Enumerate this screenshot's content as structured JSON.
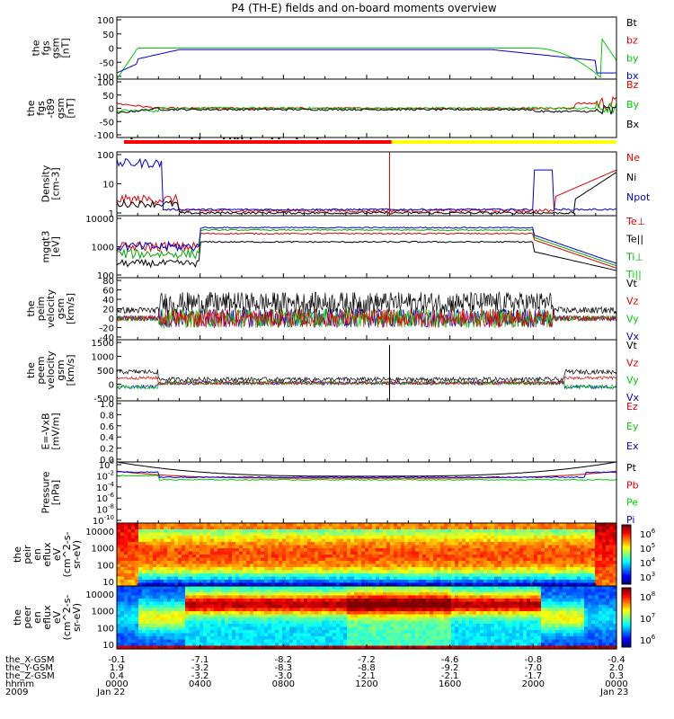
{
  "chart_data": {
    "type": "line",
    "title": "P4 (TH-E) fields and on-board moments overview",
    "panels": [
      {
        "id": "fgs",
        "ylabel": [
          "the",
          "fgs",
          "gsm",
          "[nT]"
        ],
        "yticks": [
          "100",
          "50",
          "0",
          "-50",
          "-100"
        ],
        "ylim": [
          -100,
          100
        ],
        "scale": "linear",
        "legend": [
          {
            "name": "Bt",
            "color": "#000000"
          },
          {
            "name": "bz",
            "color": "#dd0000"
          },
          {
            "name": "by",
            "color": "#00cc00"
          },
          {
            "name": "bx",
            "color": "#0000cc"
          }
        ]
      },
      {
        "id": "fgs_dt89",
        "ylabel": [
          "the",
          "fgs",
          "-t89",
          "gsm",
          "[nT]"
        ],
        "yticks": [
          "100",
          "50",
          "0",
          "-50",
          "-100"
        ],
        "ylim": [
          -120,
          120
        ],
        "scale": "linear",
        "legend": [
          {
            "name": "Bz",
            "color": "#dd0000"
          },
          {
            "name": "By",
            "color": "#00cc00"
          },
          {
            "name": "Bx",
            "color": "#000000"
          }
        ]
      },
      {
        "id": "density",
        "ylabel": [
          "Density",
          "[cm-3]"
        ],
        "yticks": [
          "100",
          "10",
          "1"
        ],
        "ylim": [
          0.3,
          200
        ],
        "scale": "log",
        "legend": [
          {
            "name": "Ne",
            "color": "#dd0000"
          },
          {
            "name": "Ni",
            "color": "#000000"
          },
          {
            "name": "Npot",
            "color": "#0000cc"
          }
        ]
      },
      {
        "id": "temperature",
        "ylabel": [
          "mgqt3",
          "[eV]"
        ],
        "yticks": [
          "10000",
          "1000",
          "100"
        ],
        "ylim": [
          50,
          20000
        ],
        "scale": "log",
        "legend": [
          {
            "name": "Te⊥",
            "color": "#dd0000"
          },
          {
            "name": "Te||",
            "color": "#000000"
          },
          {
            "name": "Ti⊥",
            "color": "#00aa00"
          },
          {
            "name": "Ti||",
            "color": "#00cc00"
          }
        ]
      },
      {
        "id": "peim_velocity",
        "ylabel": [
          "the",
          "peim",
          "velocity",
          "gsm",
          "[km/s]"
        ],
        "yticks": [
          "80",
          "60",
          "40",
          "20",
          "0",
          "-20",
          "-40"
        ],
        "ylim": [
          -45,
          85
        ],
        "scale": "linear",
        "legend": [
          {
            "name": "Vt",
            "color": "#000000"
          },
          {
            "name": "Vz",
            "color": "#dd0000"
          },
          {
            "name": "Vy",
            "color": "#00cc00"
          },
          {
            "name": "Vx",
            "color": "#0000cc"
          }
        ]
      },
      {
        "id": "peem_velocity",
        "ylabel": [
          "the",
          "peem",
          "velocity",
          "gsm",
          "[km/s]"
        ],
        "yticks": [
          "1500",
          "1000",
          "500",
          "0",
          "-500"
        ],
        "ylim": [
          -700,
          1700
        ],
        "scale": "linear",
        "legend": [
          {
            "name": "Vt",
            "color": "#000000"
          },
          {
            "name": "Vz",
            "color": "#dd0000"
          },
          {
            "name": "Vy",
            "color": "#00cc00"
          },
          {
            "name": "Vx",
            "color": "#0000cc"
          }
        ]
      },
      {
        "id": "efield",
        "ylabel": [
          "E=-VxB",
          "[mV/m]"
        ],
        "yticks": [
          "1.0",
          "0.8",
          "0.6",
          "0.4",
          "0.2",
          "0.0"
        ],
        "ylim": [
          0,
          1
        ],
        "scale": "linear",
        "legend": [
          {
            "name": "Ez",
            "color": "#dd0000"
          },
          {
            "name": "Ey",
            "color": "#00cc00"
          },
          {
            "name": "Ex",
            "color": "#0000cc"
          }
        ]
      },
      {
        "id": "pressure",
        "ylabel": [
          "Pressure",
          "[nPa]"
        ],
        "yticks": [
          "10^0",
          "10^-2",
          "10^-4",
          "10^-6",
          "10^-8",
          "10^-10"
        ],
        "ylim": [
          -11,
          1
        ],
        "scale": "log",
        "legend": [
          {
            "name": "Pt",
            "color": "#000000"
          },
          {
            "name": "Pb",
            "color": "#dd0000"
          },
          {
            "name": "Pe",
            "color": "#00cc00"
          },
          {
            "name": "Pi",
            "color": "#0000cc"
          }
        ]
      },
      {
        "id": "peir_spectrogram",
        "type": "heatmap",
        "ylabel": [
          "the",
          "peir",
          "en",
          "eflux",
          "eV",
          "(cm^2-s-",
          "sr-eV)"
        ],
        "yticks": [
          "10000",
          "1000",
          "100",
          "10"
        ],
        "colorbar": [
          "10^6",
          "10^5",
          "10^4",
          "10^3"
        ]
      },
      {
        "id": "peer_spectrogram",
        "type": "heatmap",
        "ylabel": [
          "the",
          "peer",
          "en",
          "eflux",
          "eV",
          "(cm^2-s-",
          "sr-eV)"
        ],
        "yticks": [
          "10000",
          "1000",
          "100",
          "10"
        ],
        "colorbar": [
          "10^8",
          "10^7",
          "10^6"
        ]
      }
    ],
    "mode_bar": {
      "colors": [
        "#ff0000",
        "#ffff00"
      ],
      "switch_hour": 13.2
    },
    "x_axis": {
      "type": "time",
      "range_hours": [
        0,
        24
      ],
      "row_labels": [
        "the_X-GSM",
        "the_Y-GSM",
        "the_Z-GSM",
        "hhmm",
        "2009"
      ],
      "ticks": [
        {
          "hour": 0,
          "values": [
            "-0.1",
            "1.9",
            "0.4",
            "0000",
            "Jan 22"
          ]
        },
        {
          "hour": 4,
          "values": [
            "-7.1",
            "-3.2",
            "-3.2",
            "0400",
            ""
          ]
        },
        {
          "hour": 8,
          "values": [
            "-8.2",
            "-8.3",
            "-3.0",
            "0800",
            ""
          ]
        },
        {
          "hour": 12,
          "values": [
            "-7.2",
            "-8.8",
            "-2.1",
            "1200",
            ""
          ]
        },
        {
          "hour": 16,
          "values": [
            "-4.6",
            "-9.2",
            "-2.1",
            "1600",
            ""
          ]
        },
        {
          "hour": 20,
          "values": [
            "-0.8",
            "-7.0",
            "-1.7",
            "2000",
            ""
          ]
        },
        {
          "hour": 24,
          "values": [
            "-0.4",
            "2.0",
            "0.3",
            "0000",
            "Jan 23"
          ]
        }
      ]
    }
  }
}
